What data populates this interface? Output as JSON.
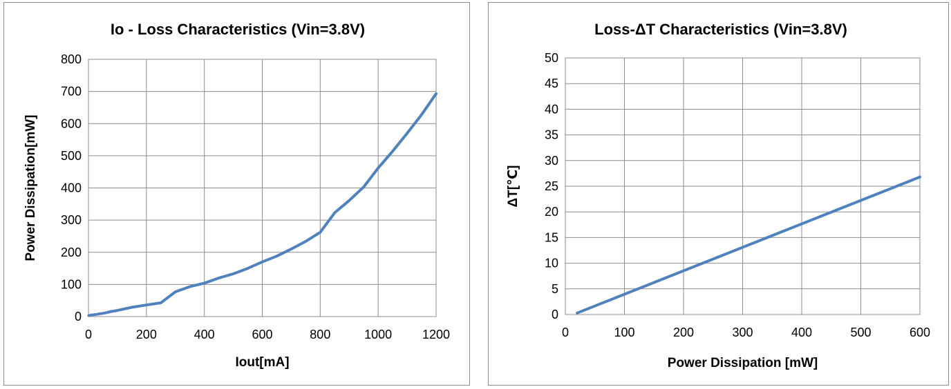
{
  "series_color": "#4f81bd",
  "chart_data": [
    {
      "type": "line",
      "title": "Io - Loss Characteristics (Vin=3.8V)",
      "xlabel": "Iout[mA]",
      "ylabel": "Power Dissipation[mW]",
      "xlim": [
        0,
        1200
      ],
      "ylim": [
        0,
        800
      ],
      "xticks": [
        "0",
        "200",
        "400",
        "600",
        "800",
        "1000",
        "1200"
      ],
      "yticks": [
        "0",
        "100",
        "200",
        "300",
        "400",
        "500",
        "600",
        "700",
        "800"
      ],
      "grid": true,
      "legend": "none",
      "series": [
        {
          "x": [
            1,
            10,
            20,
            30,
            40,
            50,
            60,
            70,
            80,
            100,
            150,
            200,
            250,
            300,
            350,
            400,
            450,
            500,
            550,
            600,
            650,
            700,
            750,
            800,
            850,
            900,
            950,
            1000,
            1050,
            1100,
            1150,
            1200
          ],
          "y": [
            3,
            5,
            6,
            7,
            9,
            10,
            12,
            14,
            16,
            19,
            29,
            36,
            43,
            77,
            93,
            104,
            120,
            133,
            150,
            170,
            188,
            210,
            234,
            262,
            323,
            361,
            403,
            462,
            514,
            570,
            628,
            693
          ]
        }
      ]
    },
    {
      "type": "line",
      "title": "Loss-ΔT Characteristics (Vin=3.8V)",
      "xlabel": "Power Dissipation [mW]",
      "ylabel": "ΔT[℃]",
      "xlim": [
        0,
        600
      ],
      "ylim": [
        0,
        50
      ],
      "xticks": [
        "0",
        "100",
        "200",
        "300",
        "400",
        "500",
        "600"
      ],
      "yticks": [
        "0",
        "5",
        "10",
        "15",
        "20",
        "25",
        "30",
        "35",
        "40",
        "45",
        "50"
      ],
      "grid": true,
      "legend": "none",
      "series": [
        {
          "x": [
            20,
            600
          ],
          "y": [
            0.3,
            26.8
          ]
        }
      ]
    }
  ]
}
